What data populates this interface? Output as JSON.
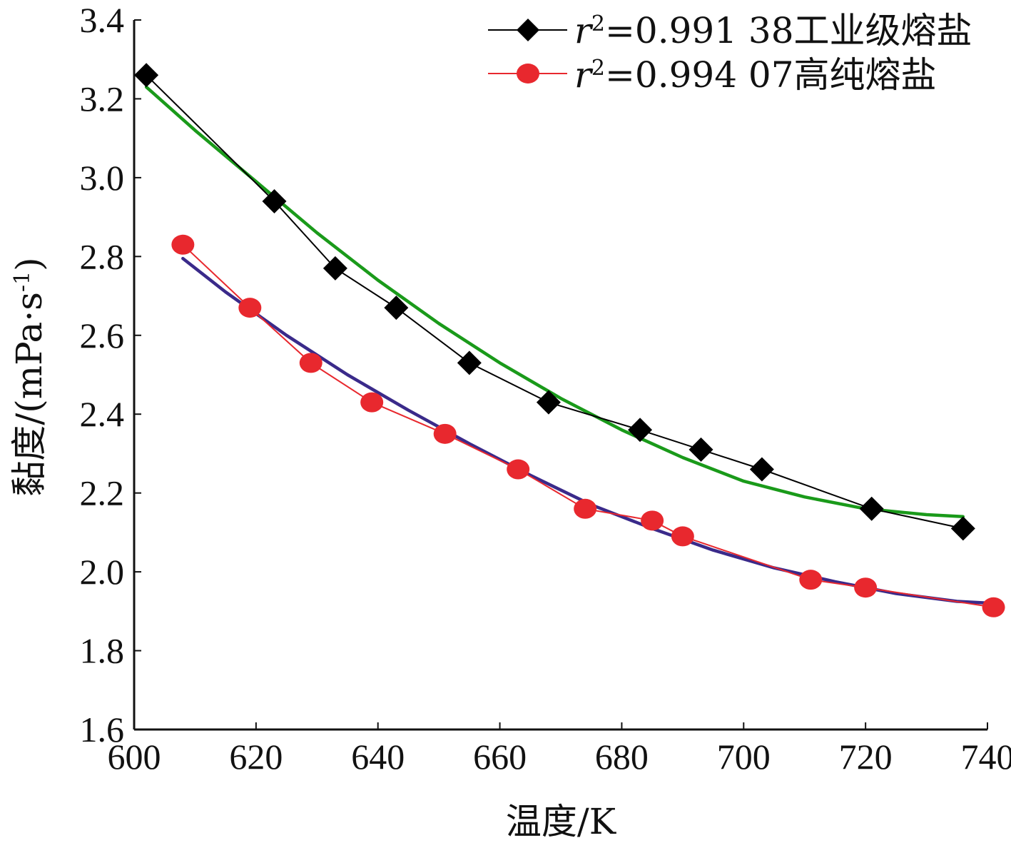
{
  "chart_data": {
    "type": "line",
    "xlabel": "温度/K",
    "ylabel": "黏度/(mPa·s",
    "ylabel_sup": "-1",
    "ylabel_close": ")",
    "xlim": [
      600,
      740
    ],
    "ylim": [
      1.6,
      3.4
    ],
    "x_ticks": [
      600,
      620,
      640,
      660,
      680,
      700,
      720,
      740
    ],
    "y_ticks": [
      "1.6",
      "1.8",
      "2.0",
      "2.2",
      "2.4",
      "2.6",
      "2.8",
      "3.0",
      "3.2",
      "3.4"
    ],
    "grid": false,
    "legend_position": "top-right",
    "series": [
      {
        "name_var": "r",
        "name_sup": "2",
        "name_rest": "=0.991 38工业级熔盐",
        "marker": "diamond",
        "color": "#000000",
        "line_color": "#000000",
        "x": [
          602,
          623,
          633,
          643,
          655,
          668,
          683,
          693,
          703,
          721,
          736
        ],
        "y": [
          3.26,
          2.94,
          2.77,
          2.67,
          2.53,
          2.43,
          2.36,
          2.31,
          2.26,
          2.16,
          2.11
        ],
        "fit_color": "#1a9a1a",
        "fit_x": [
          602,
          610,
          620,
          630,
          640,
          650,
          660,
          670,
          680,
          690,
          700,
          710,
          720,
          730,
          736
        ],
        "fit_y": [
          3.23,
          3.12,
          2.99,
          2.86,
          2.74,
          2.63,
          2.53,
          2.44,
          2.36,
          2.29,
          2.23,
          2.19,
          2.16,
          2.145,
          2.14
        ]
      },
      {
        "name_var": "r",
        "name_sup": "2",
        "name_rest": "=0.994 07高纯熔盐",
        "marker": "circle",
        "color": "#e8282e",
        "line_color": "#e8282e",
        "x": [
          608,
          619,
          629,
          639,
          651,
          663,
          674,
          685,
          690,
          711,
          720,
          741
        ],
        "y": [
          2.83,
          2.67,
          2.53,
          2.43,
          2.35,
          2.26,
          2.16,
          2.13,
          2.09,
          1.98,
          1.96,
          1.91
        ],
        "fit_color": "#3a2a8a",
        "fit_x": [
          608,
          615,
          625,
          635,
          645,
          655,
          665,
          675,
          685,
          695,
          705,
          715,
          725,
          735,
          741
        ],
        "fit_y": [
          2.795,
          2.71,
          2.6,
          2.5,
          2.41,
          2.325,
          2.245,
          2.17,
          2.11,
          2.055,
          2.01,
          1.975,
          1.945,
          1.925,
          1.92
        ]
      }
    ]
  }
}
